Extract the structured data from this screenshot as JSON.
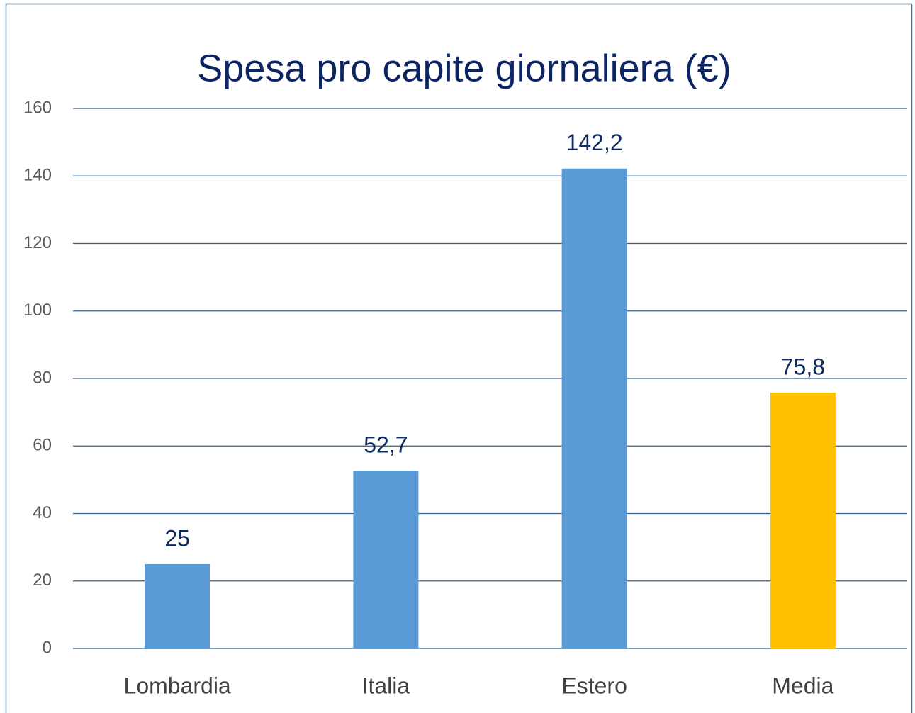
{
  "chart_data": {
    "type": "bar",
    "title": "Spesa pro capite giornaliera (€)",
    "categories": [
      "Lombardia",
      "Italia",
      "Estero",
      "Media"
    ],
    "values": [
      25,
      52.7,
      142.2,
      75.8
    ],
    "value_labels": [
      "25",
      "52,7",
      "142,2",
      "75,8"
    ],
    "colors": [
      "#5b9bd5",
      "#5b9bd5",
      "#5b9bd5",
      "#ffc000"
    ],
    "ylim": [
      0,
      160
    ],
    "yticks": [
      0,
      20,
      40,
      60,
      80,
      100,
      120,
      140,
      160
    ],
    "grid": true
  }
}
